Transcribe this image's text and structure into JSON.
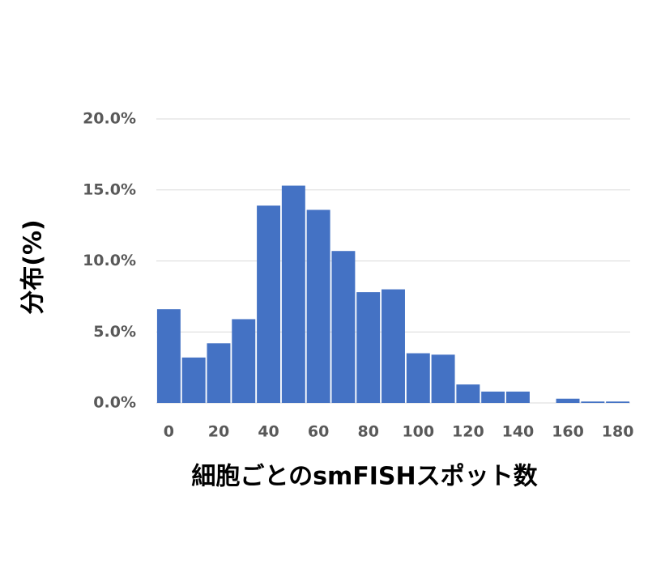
{
  "chart_data": {
    "type": "bar",
    "x_label": "細胞ごとのsmFISHスポット数",
    "y_label": "分布(%)",
    "categories": [
      "0",
      null,
      "20",
      null,
      "40",
      null,
      "60",
      null,
      "80",
      null,
      "100",
      null,
      "120",
      null,
      "140",
      null,
      "160",
      null,
      "180"
    ],
    "values": [
      6.6,
      3.2,
      4.2,
      5.9,
      13.9,
      15.3,
      13.6,
      10.7,
      7.8,
      8.0,
      3.5,
      3.4,
      1.3,
      0.8,
      0.8,
      0,
      0.3,
      0.1,
      0.1
    ],
    "color": "#4472c4",
    "ylim": [
      0,
      20
    ],
    "yticks": [
      {
        "value": 0,
        "label": "0.0%"
      },
      {
        "value": 5,
        "label": "5.0%"
      },
      {
        "value": 10,
        "label": "10.0%"
      },
      {
        "value": 15,
        "label": "15.0%"
      },
      {
        "value": 20,
        "label": "20.0%"
      }
    ],
    "grid": true
  }
}
